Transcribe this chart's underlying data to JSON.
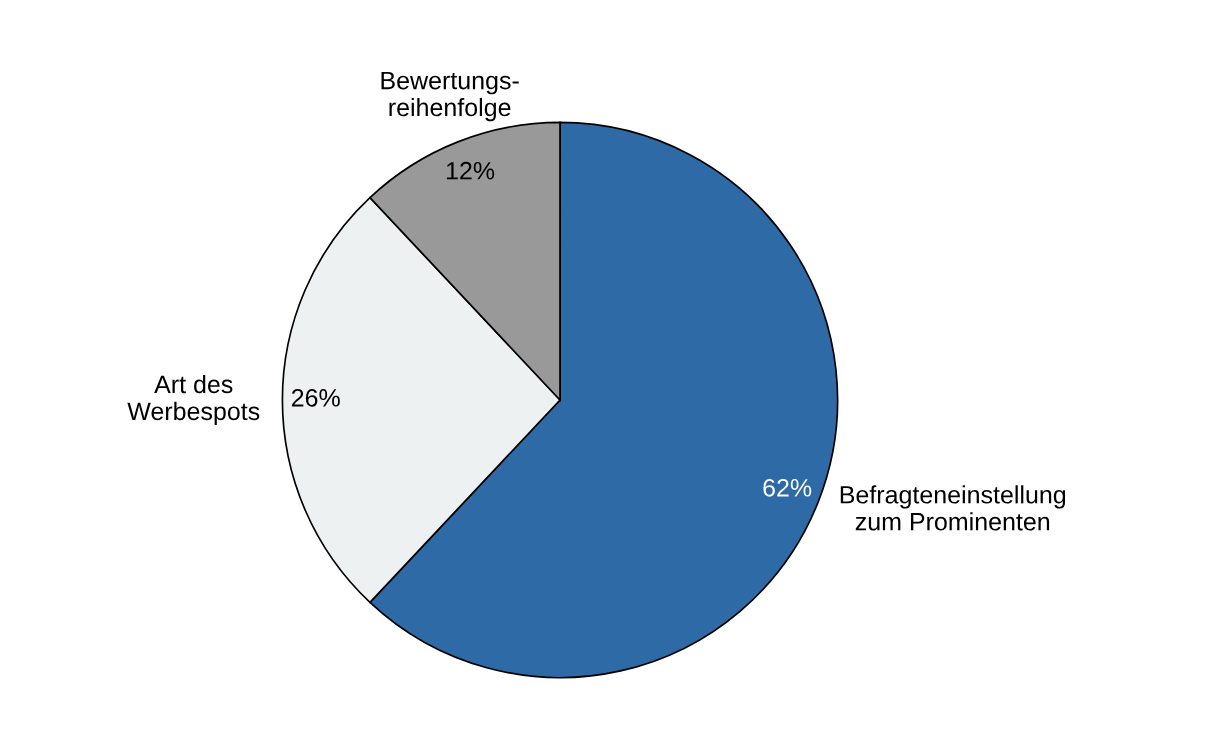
{
  "chart_data": {
    "type": "pie",
    "categories": [
      "Befragteneinstellung\nzum Prominenten",
      "Art des\nWerbespots",
      "Bewertungs-\nreihenfolge"
    ],
    "values": [
      62,
      26,
      12
    ],
    "value_labels": [
      "62%",
      "26%",
      "12%"
    ],
    "colors": [
      "#2e6aa6",
      "#edf1f2",
      "#999999"
    ],
    "legend": false
  }
}
